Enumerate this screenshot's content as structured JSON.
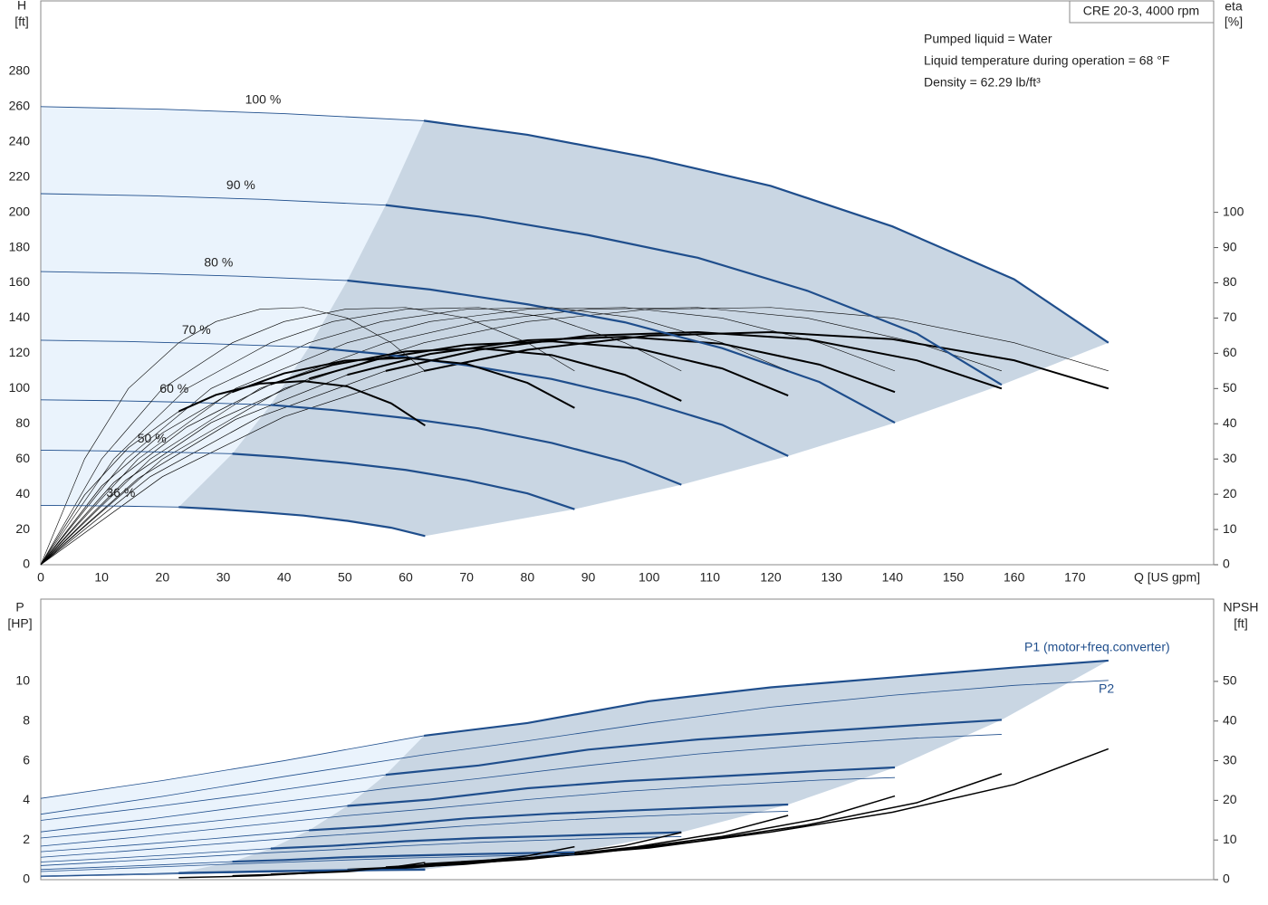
{
  "chart_data": [
    {
      "type": "line",
      "title": "CRE 20-3, 4000 rpm",
      "notes": [
        "Pumped liquid = Water",
        "Liquid temperature during operation = 68 °F",
        "Density = 62.29 lb/ft³"
      ],
      "y_label": [
        "H",
        "[ft]"
      ],
      "y2_label": [
        "eta",
        "[%]"
      ],
      "x_label": "Q [US gpm]",
      "xlim": [
        0,
        192.8
      ],
      "ylim": [
        0,
        320
      ],
      "y2lim": [
        0,
        160
      ],
      "xticks": [
        0,
        10,
        20,
        30,
        40,
        50,
        60,
        70,
        80,
        90,
        100,
        110,
        120,
        130,
        140,
        150,
        160,
        170
      ],
      "yticks": [
        0,
        20,
        40,
        60,
        80,
        100,
        120,
        140,
        160,
        180,
        200,
        220,
        240,
        260,
        280
      ],
      "y2ticks": [
        0,
        10,
        20,
        30,
        40,
        50,
        60,
        70,
        80,
        90,
        100
      ],
      "grid": true,
      "eta_color": "#000000",
      "region_color": "#c9d6e3",
      "outer_region_color": "#eaf3fc",
      "series": [
        {
          "name": "100 %",
          "color": "#1f4e8c",
          "operating_from": 63,
          "x": [
            0,
            20,
            40,
            63,
            80,
            100,
            120,
            140,
            160,
            175.5
          ],
          "values": [
            260,
            258.5,
            256,
            252,
            244,
            231,
            215,
            192,
            162,
            126
          ],
          "eta": [
            0,
            25,
            42,
            55,
            61,
            65,
            66,
            64,
            58,
            50
          ],
          "eta_pump": [
            0,
            30,
            50,
            63,
            69,
            72.5,
            73,
            70,
            63,
            55
          ]
        },
        {
          "name": "90 %",
          "color": "#1f4e8c",
          "operating_from": 56.7,
          "x": [
            0,
            18,
            36,
            56.7,
            72,
            90,
            108,
            126,
            144,
            157.95
          ],
          "values": [
            210.6,
            209.4,
            207.4,
            204.1,
            197.6,
            187.1,
            174.2,
            155.5,
            131.2,
            102.1
          ],
          "eta": [
            0,
            25,
            42,
            55,
            61,
            65,
            66,
            64,
            58,
            50
          ],
          "eta_pump": [
            0,
            30,
            50,
            63,
            69,
            72.5,
            73,
            70,
            63,
            55
          ]
        },
        {
          "name": "80 %",
          "color": "#1f4e8c",
          "operating_from": 50.4,
          "x": [
            0,
            16,
            32,
            50.4,
            64,
            80,
            96,
            112,
            128,
            140.4
          ],
          "values": [
            166.4,
            165.4,
            163.8,
            161.3,
            156.2,
            147.8,
            137.6,
            122.9,
            103.7,
            80.6
          ],
          "eta": [
            0,
            24.5,
            41.2,
            53.9,
            59.8,
            63.7,
            64.7,
            62.7,
            56.8,
            49
          ],
          "eta_pump": [
            0,
            30,
            50,
            63,
            69,
            72.5,
            73,
            70,
            63,
            55
          ]
        },
        {
          "name": "70 %",
          "color": "#1f4e8c",
          "operating_from": 44.1,
          "x": [
            0,
            14,
            28,
            44.1,
            56,
            70,
            84,
            98,
            112,
            122.85
          ],
          "values": [
            127.4,
            126.7,
            125.4,
            123.5,
            119.6,
            113.2,
            105.4,
            94.1,
            79.4,
            61.7
          ],
          "eta": [
            0,
            24,
            40.3,
            52.8,
            58.6,
            62.4,
            63.4,
            61.4,
            55.7,
            48
          ],
          "eta_pump": [
            0,
            30,
            50,
            63,
            69,
            72.5,
            73,
            70,
            63,
            55
          ]
        },
        {
          "name": "60 %",
          "color": "#1f4e8c",
          "operating_from": 37.8,
          "x": [
            0,
            12,
            24,
            37.8,
            48,
            60,
            72,
            84,
            96,
            105.3
          ],
          "values": [
            93.6,
            93.1,
            92.2,
            90.7,
            87.8,
            83.2,
            77.4,
            69.1,
            58.3,
            45.4
          ],
          "eta": [
            0,
            23.3,
            39.1,
            51.2,
            56.7,
            60.5,
            61.4,
            59.5,
            53.9,
            46.5
          ],
          "eta_pump": [
            0,
            30,
            50,
            63,
            69,
            72.5,
            73,
            70,
            63,
            55
          ]
        },
        {
          "name": "50 %",
          "color": "#1f4e8c",
          "operating_from": 31.5,
          "x": [
            0,
            10,
            20,
            31.5,
            40,
            50,
            60,
            70,
            80,
            87.75
          ],
          "values": [
            65,
            64.6,
            64,
            63,
            61,
            57.8,
            53.8,
            48,
            40.5,
            31.5
          ],
          "eta": [
            0,
            22.3,
            37.4,
            49,
            54.3,
            57.9,
            58.7,
            57,
            51.6,
            44.5
          ],
          "eta_pump": [
            0,
            30,
            50,
            63,
            69,
            72.5,
            73,
            70,
            63,
            55
          ]
        },
        {
          "name": "36 %",
          "color": "#1f4e8c",
          "operating_from": 22.68,
          "x": [
            0,
            7.2,
            14.4,
            22.68,
            28.8,
            36,
            43.2,
            50.4,
            57.6,
            63.18
          ],
          "values": [
            33.7,
            33.5,
            33.2,
            32.7,
            31.6,
            29.9,
            27.9,
            24.9,
            21,
            16.3
          ],
          "eta": [
            0,
            19.8,
            33.2,
            43.5,
            48.2,
            51.4,
            52.1,
            50.6,
            45.8,
            39.5
          ],
          "eta_pump": [
            0,
            30,
            50,
            63,
            69,
            72.5,
            73,
            70,
            63,
            55
          ]
        }
      ]
    },
    {
      "type": "line",
      "y_label": [
        "P",
        "[HP]"
      ],
      "y2_label": [
        "NPSH",
        "[ft]"
      ],
      "p1_label": "P1 (motor+freq.converter)",
      "p2_label": "P2",
      "ylim": [
        0,
        14.15
      ],
      "y2lim": [
        0,
        70.75
      ],
      "yticks": [
        0,
        2,
        4,
        6,
        8,
        10
      ],
      "y2ticks": [
        0,
        10,
        20,
        30,
        40,
        50
      ],
      "grid": true,
      "p1_color": "#1f4e8c",
      "npsh_color": "#000000",
      "region_color": "#c9d6e3",
      "outer_region_color": "#eaf3fc",
      "series": [
        {
          "p1": [
            4.1,
            5.0,
            6.0,
            7.26,
            7.9,
            9.0,
            9.7,
            10.2,
            10.7,
            11.05
          ],
          "p2": [
            3.3,
            4.2,
            5.2,
            6.3,
            7.0,
            7.9,
            8.7,
            9.3,
            9.8,
            10.05
          ],
          "npsh": [
            null,
            null,
            null,
            4,
            5.5,
            8,
            12,
            17,
            24,
            33
          ]
        },
        {
          "p1": [
            2.99,
            3.65,
            4.37,
            5.29,
            5.76,
            6.56,
            7.07,
            7.44,
            7.8,
            8.06
          ],
          "p2": [
            2.41,
            3.06,
            3.79,
            4.59,
            5.1,
            5.76,
            6.34,
            6.78,
            7.14,
            7.33
          ],
          "npsh": [
            null,
            null,
            null,
            3.2,
            4.5,
            6.5,
            9.7,
            13.8,
            19.4,
            26.7
          ]
        },
        {
          "p1": [
            2.1,
            2.56,
            3.07,
            3.72,
            4.04,
            4.61,
            4.97,
            5.22,
            5.48,
            5.66
          ],
          "p2": [
            1.69,
            2.15,
            2.66,
            3.23,
            3.58,
            4.04,
            4.45,
            4.76,
            5.02,
            5.15
          ],
          "npsh": [
            null,
            null,
            null,
            2.6,
            3.5,
            5.1,
            7.7,
            10.9,
            15.4,
            21.1
          ]
        },
        {
          "p1": [
            1.41,
            1.72,
            2.06,
            2.49,
            2.71,
            3.09,
            3.33,
            3.5,
            3.67,
            3.79
          ],
          "p2": [
            1.13,
            1.44,
            1.78,
            2.16,
            2.4,
            2.71,
            2.98,
            3.19,
            3.36,
            3.45
          ],
          "npsh": [
            null,
            null,
            null,
            2,
            2.7,
            3.9,
            5.9,
            8.3,
            11.8,
            16.2
          ]
        },
        {
          "p1": [
            0.89,
            1.08,
            1.3,
            1.57,
            1.71,
            1.94,
            2.1,
            2.2,
            2.31,
            2.39
          ],
          "p2": [
            0.71,
            0.91,
            1.12,
            1.36,
            1.51,
            1.71,
            1.88,
            2.01,
            2.12,
            2.17
          ],
          "npsh": [
            null,
            null,
            null,
            1.4,
            2,
            2.9,
            4.3,
            6.1,
            8.6,
            11.9
          ]
        },
        {
          "p1": [
            0.51,
            0.63,
            0.75,
            0.91,
            0.99,
            1.13,
            1.21,
            1.28,
            1.34,
            1.38
          ],
          "p2": [
            0.41,
            0.53,
            0.65,
            0.79,
            0.88,
            0.99,
            1.09,
            1.16,
            1.23,
            1.26
          ],
          "npsh": [
            null,
            null,
            null,
            1,
            1.4,
            2,
            3,
            4.3,
            6,
            8.3
          ]
        },
        {
          "p1": [
            0.19,
            0.23,
            0.28,
            0.34,
            0.37,
            0.42,
            0.45,
            0.48,
            0.5,
            0.52
          ],
          "p2": [
            0.15,
            0.2,
            0.24,
            0.29,
            0.33,
            0.37,
            0.41,
            0.43,
            0.46,
            0.47
          ],
          "npsh": [
            null,
            null,
            null,
            0.5,
            0.7,
            1,
            1.6,
            2.2,
            3.1,
            4.3
          ]
        }
      ]
    }
  ]
}
